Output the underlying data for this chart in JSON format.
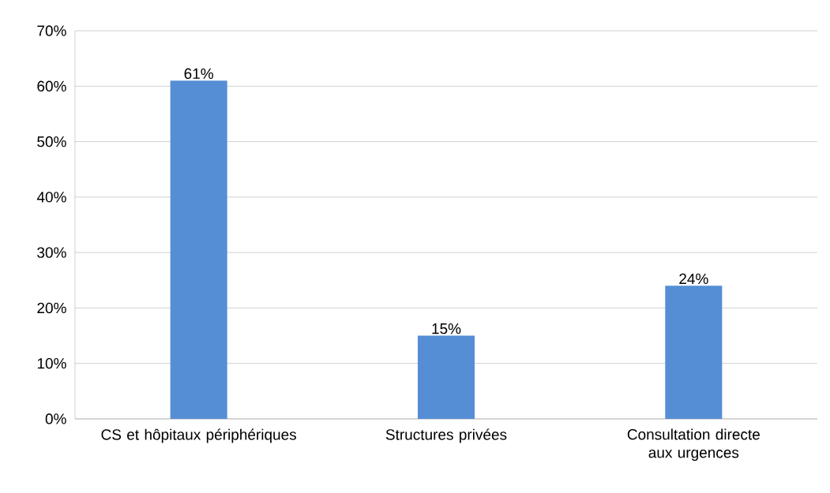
{
  "chart_data": {
    "type": "bar",
    "categories": [
      "CS et hôpitaux périphériques",
      "Structures privées",
      "Consultation directe aux urgences"
    ],
    "values": [
      61,
      15,
      24
    ],
    "color": "#558ed5",
    "data_labels": true,
    "value_labels": [
      "61%",
      "15%",
      "24%"
    ],
    "ylim": [
      0,
      70
    ],
    "yticks": [
      {
        "value": 0,
        "label": "0%"
      },
      {
        "value": 10,
        "label": "10%"
      },
      {
        "value": 20,
        "label": "20%"
      },
      {
        "value": 30,
        "label": "30%"
      },
      {
        "value": 40,
        "label": "40%"
      },
      {
        "value": 50,
        "label": "50%"
      },
      {
        "value": 60,
        "label": "60%"
      },
      {
        "value": 70,
        "label": "70%"
      }
    ],
    "grid": "y"
  }
}
